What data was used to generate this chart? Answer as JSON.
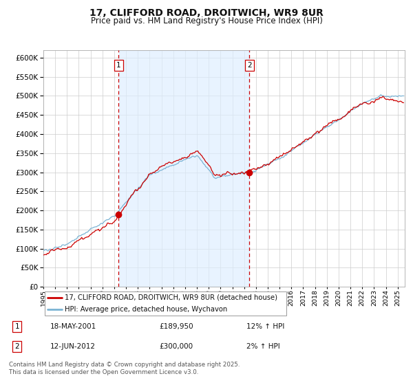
{
  "title_line1": "17, CLIFFORD ROAD, DROITWICH, WR9 8UR",
  "title_line2": "Price paid vs. HM Land Registry's House Price Index (HPI)",
  "legend_entry1": "17, CLIFFORD ROAD, DROITWICH, WR9 8UR (detached house)",
  "legend_entry2": "HPI: Average price, detached house, Wychavon",
  "sale1_label": "1",
  "sale1_date": "18-MAY-2001",
  "sale1_price": "£189,950",
  "sale1_hpi": "12% ↑ HPI",
  "sale2_label": "2",
  "sale2_date": "12-JUN-2012",
  "sale2_price": "£300,000",
  "sale2_hpi": "2% ↑ HPI",
  "sale1_year": 2001.38,
  "sale1_value": 189950,
  "sale2_year": 2012.45,
  "sale2_value": 300000,
  "hpi_color": "#7ab3d4",
  "property_color": "#cc0000",
  "dot_color": "#cc0000",
  "vline_color": "#cc0000",
  "shade_color": "#ddeeff",
  "background_color": "#ffffff",
  "grid_color": "#cccccc",
  "ylim_min": 0,
  "ylim_max": 620000,
  "ytick_step": 50000,
  "title_fontsize": 10,
  "subtitle_fontsize": 8.5,
  "footer_text": "Contains HM Land Registry data © Crown copyright and database right 2025.\nThis data is licensed under the Open Government Licence v3.0.",
  "box_color": "#cc0000"
}
